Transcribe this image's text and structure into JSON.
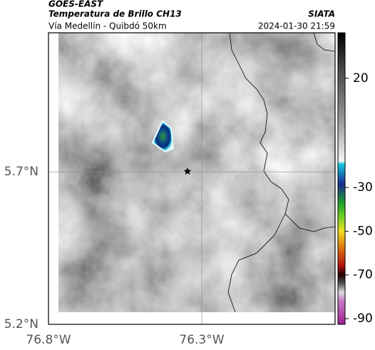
{
  "header": {
    "source": "GOES-EAST",
    "product": "Temperatura de Brillo CH13",
    "organization": "SIATA",
    "region": "Vía Medellín - Quibdó 50km",
    "timestamp": "2024-01-30 21:59"
  },
  "map": {
    "xlim": [
      -76.8,
      -75.865
    ],
    "ylim": [
      5.2,
      6.156
    ],
    "xticks": [
      {
        "value": -76.8,
        "label": "76.8°W"
      },
      {
        "value": -76.3,
        "label": "76.3°W"
      }
    ],
    "yticks": [
      {
        "value": 5.2,
        "label": "5.2°N"
      },
      {
        "value": 5.7,
        "label": "5.7°N"
      }
    ],
    "grid": true
  },
  "colorbar": {
    "lim": [
      -92.6,
      40.8
    ],
    "ticks": [
      20,
      -30,
      -50,
      -70,
      -90
    ]
  }
}
